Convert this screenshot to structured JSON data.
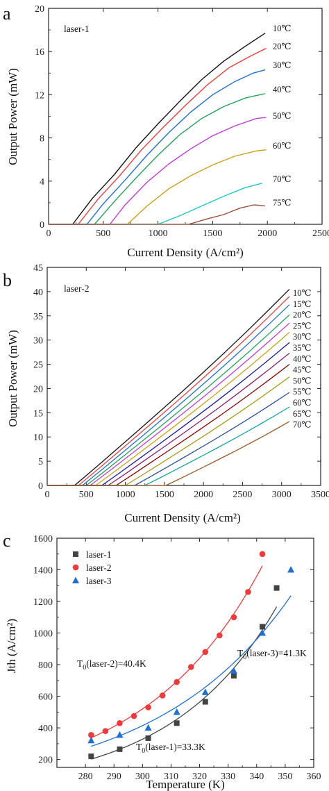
{
  "chart_data": [
    {
      "panel": "a",
      "type": "line",
      "annotation": "laser-1",
      "xlabel": "Current Density",
      "xlabel_unit": "(A/cm²)",
      "ylabel": "Output Power (mW)",
      "xlim": [
        0,
        2500
      ],
      "ylim": [
        0,
        20
      ],
      "x_ticks": [
        "0",
        "500",
        "1000",
        "1500",
        "2000",
        "2500"
      ],
      "y_ticks": [
        "0",
        "4",
        "8",
        "12",
        "16",
        "20"
      ],
      "series": [
        {
          "name": "10℃",
          "color": "#111111",
          "points": [
            [
              220,
              0
            ],
            [
              400,
              2.4
            ],
            [
              600,
              4.6
            ],
            [
              800,
              7.1
            ],
            [
              1000,
              9.3
            ],
            [
              1200,
              11.4
            ],
            [
              1400,
              13.4
            ],
            [
              1600,
              15.1
            ],
            [
              1800,
              16.5
            ],
            [
              1980,
              17.7
            ]
          ]
        },
        {
          "name": "20℃",
          "color": "#e8413c",
          "points": [
            [
              270,
              0
            ],
            [
              450,
              2.3
            ],
            [
              650,
              4.5
            ],
            [
              850,
              6.9
            ],
            [
              1050,
              9.0
            ],
            [
              1250,
              11.0
            ],
            [
              1450,
              12.9
            ],
            [
              1650,
              14.5
            ],
            [
              1850,
              15.6
            ],
            [
              1990,
              16.3
            ]
          ]
        },
        {
          "name": "30℃",
          "color": "#1f6fd1",
          "points": [
            [
              350,
              0
            ],
            [
              500,
              1.9
            ],
            [
              700,
              4.1
            ],
            [
              900,
              6.4
            ],
            [
              1100,
              8.5
            ],
            [
              1300,
              10.4
            ],
            [
              1500,
              12.0
            ],
            [
              1700,
              13.2
            ],
            [
              1870,
              14.0
            ],
            [
              1980,
              14.3
            ]
          ]
        },
        {
          "name": "40℃",
          "color": "#22a35a",
          "points": [
            [
              420,
              0
            ],
            [
              600,
              2.1
            ],
            [
              800,
              4.3
            ],
            [
              1000,
              6.4
            ],
            [
              1200,
              8.3
            ],
            [
              1400,
              9.8
            ],
            [
              1600,
              10.9
            ],
            [
              1800,
              11.7
            ],
            [
              1980,
              12.1
            ]
          ]
        },
        {
          "name": "50℃",
          "color": "#c03bd6",
          "points": [
            [
              560,
              0
            ],
            [
              700,
              1.8
            ],
            [
              900,
              3.9
            ],
            [
              1100,
              5.6
            ],
            [
              1300,
              7.0
            ],
            [
              1500,
              8.2
            ],
            [
              1700,
              9.1
            ],
            [
              1900,
              9.8
            ],
            [
              1990,
              9.9
            ]
          ]
        },
        {
          "name": "60℃",
          "color": "#c9a017",
          "points": [
            [
              720,
              0
            ],
            [
              900,
              1.7
            ],
            [
              1100,
              3.3
            ],
            [
              1300,
              4.5
            ],
            [
              1500,
              5.5
            ],
            [
              1700,
              6.3
            ],
            [
              1900,
              6.8
            ],
            [
              1990,
              6.9
            ]
          ]
        },
        {
          "name": "70℃",
          "color": "#1cc8c0",
          "points": [
            [
              1000,
              0
            ],
            [
              1200,
              0.8
            ],
            [
              1400,
              1.7
            ],
            [
              1600,
              2.6
            ],
            [
              1800,
              3.4
            ],
            [
              1950,
              3.8
            ]
          ]
        },
        {
          "name": "75℃",
          "color": "#9b4f3a",
          "points": [
            [
              1280,
              0
            ],
            [
              1450,
              0.5
            ],
            [
              1600,
              0.9
            ],
            [
              1750,
              1.5
            ],
            [
              1880,
              1.8
            ],
            [
              1980,
              1.7
            ]
          ]
        }
      ]
    },
    {
      "panel": "b",
      "type": "line",
      "annotation": "laser-2",
      "xlabel": "Current Density",
      "xlabel_unit": "(A/cm²)",
      "ylabel": "Output Power (mW)",
      "xlim": [
        0,
        3500
      ],
      "ylim": [
        0,
        45
      ],
      "x_ticks": [
        "0",
        "500",
        "1000",
        "1500",
        "2000",
        "2500",
        "3000",
        "3500"
      ],
      "y_ticks": [
        "0",
        "5",
        "10",
        "15",
        "20",
        "25",
        "30",
        "35",
        "40",
        "45"
      ],
      "series": [
        {
          "name": "10℃",
          "color": "#111111",
          "points": [
            [
              350,
              0
            ],
            [
              3100,
              40.5
            ]
          ]
        },
        {
          "name": "15℃",
          "color": "#e8413c",
          "points": [
            [
              400,
              0
            ],
            [
              3100,
              39.0
            ]
          ]
        },
        {
          "name": "20℃",
          "color": "#1f6fd1",
          "points": [
            [
              450,
              0
            ],
            [
              3100,
              37.3
            ]
          ]
        },
        {
          "name": "25℃",
          "color": "#22a35a",
          "points": [
            [
              500,
              0
            ],
            [
              3100,
              35.2
            ]
          ]
        },
        {
          "name": "30℃",
          "color": "#c03bd6",
          "points": [
            [
              550,
              0
            ],
            [
              3100,
              33.5
            ]
          ]
        },
        {
          "name": "35℃",
          "color": "#c9a017",
          "points": [
            [
              620,
              0
            ],
            [
              3100,
              31.6
            ]
          ]
        },
        {
          "name": "40℃",
          "color": "#1a1a9e",
          "points": [
            [
              700,
              0
            ],
            [
              3100,
              29.5
            ]
          ]
        },
        {
          "name": "45℃",
          "color": "#8a1c73",
          "points": [
            [
              780,
              0
            ],
            [
              3100,
              27.3
            ]
          ]
        },
        {
          "name": "50℃",
          "color": "#8b0000",
          "points": [
            [
              880,
              0
            ],
            [
              3100,
              25.0
            ]
          ]
        },
        {
          "name": "55℃",
          "color": "#a89a14",
          "points": [
            [
              1000,
              0
            ],
            [
              3100,
              22.4
            ]
          ]
        },
        {
          "name": "60℃",
          "color": "#2b4fa0",
          "points": [
            [
              1120,
              0
            ],
            [
              3100,
              19.2
            ]
          ]
        },
        {
          "name": "65℃",
          "color": "#1aa4a0",
          "points": [
            [
              1250,
              0
            ],
            [
              3100,
              16.2
            ]
          ]
        },
        {
          "name": "70℃",
          "color": "#9b5a2a",
          "points": [
            [
              1520,
              0
            ],
            [
              3100,
              13.2
            ]
          ]
        }
      ]
    },
    {
      "panel": "c",
      "type": "scatter",
      "xlabel": "Temperature (K)",
      "ylabel": "Jth (A/cm²)",
      "xlim": [
        270,
        360
      ],
      "ylim": [
        150,
        1600
      ],
      "x_ticks": [
        "280",
        "290",
        "300",
        "310",
        "320",
        "330",
        "340",
        "350",
        "360"
      ],
      "y_ticks": [
        "200",
        "400",
        "600",
        "800",
        "1000",
        "1200",
        "1400",
        "1600"
      ],
      "legend": [
        "laser-1",
        "laser-2",
        "laser-3"
      ],
      "series": [
        {
          "name": "laser-1",
          "color": "#444444",
          "marker": "square",
          "x": [
            282,
            292,
            302,
            312,
            322,
            332,
            342,
            347
          ],
          "y": [
            220,
            265,
            335,
            430,
            565,
            730,
            1040,
            1285
          ]
        },
        {
          "name": "laser-2",
          "color": "#ee3a3a",
          "marker": "circle",
          "x": [
            282,
            287,
            292,
            297,
            302,
            307,
            312,
            317,
            322,
            327,
            332,
            337,
            342
          ],
          "y": [
            355,
            380,
            430,
            475,
            530,
            605,
            690,
            785,
            880,
            985,
            1100,
            1260,
            1500
          ]
        },
        {
          "name": "laser-3",
          "color": "#1f6fd1",
          "marker": "triangle",
          "x": [
            282,
            292,
            302,
            312,
            322,
            332,
            342,
            352
          ],
          "y": [
            320,
            355,
            400,
            500,
            625,
            760,
            1000,
            1400
          ]
        }
      ],
      "annotations": [
        {
          "prefix": "T",
          "sub": "0",
          "suffix": "(laser-2)=40.4K",
          "color": "#ee3a3a"
        },
        {
          "prefix": "T",
          "sub": "0",
          "suffix": "(laser-3)=41.3K",
          "color": "#1f6fd1"
        },
        {
          "prefix": "T",
          "sub": "0",
          "suffix": "(laser-1)=33.3K",
          "color": "#111111"
        }
      ]
    }
  ]
}
